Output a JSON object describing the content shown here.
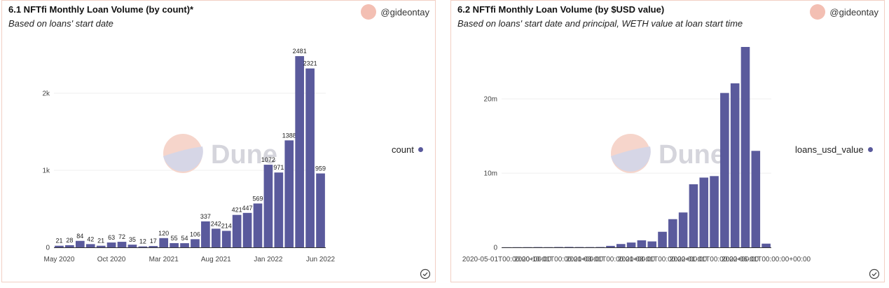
{
  "panels": [
    {
      "title": "6.1 NFTfi Monthly Loan Volume (by count)*",
      "subtitle": "Based on loans' start date",
      "author": "@gideontay",
      "legend": "count",
      "watermark": "Dune"
    },
    {
      "title": "6.2 NFTfi Monthly Loan Volume (by $USD value)",
      "subtitle": "Based on loans' start date and principal, WETH value at loan start time",
      "author": "@gideontay",
      "legend": "loans_usd_value",
      "watermark": "Dune"
    }
  ],
  "colors": {
    "bar": "#5a5a9c",
    "border": "#f2cfc4",
    "avatar": "#f3bfb3"
  },
  "chart_data": [
    {
      "type": "bar",
      "title": "6.1 NFTfi Monthly Loan Volume (by count)*",
      "subtitle": "Based on loans' start date",
      "xlabel": "",
      "ylabel": "",
      "x_tick_labels": [
        "May 2020",
        "Oct 2020",
        "Mar 2021",
        "Aug 2021",
        "Jan 2022",
        "Jun 2022"
      ],
      "y_tick_labels": [
        "0",
        "1k",
        "2k"
      ],
      "y_ticks": [
        0,
        1000,
        2000
      ],
      "ylim": [
        0,
        2600
      ],
      "grid": true,
      "legend_position": "right",
      "series": [
        {
          "name": "count",
          "values": [
            21,
            28,
            84,
            42,
            21,
            63,
            72,
            35,
            12,
            17,
            120,
            55,
            54,
            106,
            337,
            242,
            214,
            421,
            447,
            569,
            1072,
            971,
            1388,
            2481,
            2321,
            959
          ]
        }
      ],
      "data_labels": [
        "21",
        "28",
        "84",
        "42",
        "21",
        "63",
        "72",
        "35",
        "12",
        "17",
        "120",
        "55",
        "54",
        "106",
        "337",
        "242",
        "214",
        "421",
        "447",
        "569",
        "1072",
        "971",
        "1388",
        "2481",
        "2321",
        "959"
      ]
    },
    {
      "type": "bar",
      "title": "6.2 NFTfi Monthly Loan Volume (by $USD value)",
      "subtitle": "Based on loans' start date and principal, WETH value at loan start time",
      "xlabel": "",
      "ylabel": "",
      "x_tick_labels": [
        "2020-05-01T00:00:00+00:00",
        "2020-10-01T00:00:00+00:00",
        "2021-03-01T00:00:00+00:00",
        "2021-08-01T00:00:00+00:00",
        "2022-01-01T00:00:00+00:00",
        "2022-06-01T00:00:00+00:00"
      ],
      "y_tick_labels": [
        "0",
        "10m",
        "20m"
      ],
      "y_ticks": [
        0,
        10000000,
        20000000
      ],
      "ylim": [
        0,
        27000000
      ],
      "grid": true,
      "legend_position": "right",
      "series": [
        {
          "name": "loans_usd_value",
          "values": [
            20000,
            25000,
            30000,
            40000,
            30000,
            50000,
            60000,
            45000,
            40000,
            50000,
            200000,
            450000,
            650000,
            950000,
            800000,
            2100000,
            3800000,
            4700000,
            8500000,
            9400000,
            9600000,
            20800000,
            22100000,
            27000000,
            13000000,
            500000
          ]
        }
      ]
    }
  ]
}
